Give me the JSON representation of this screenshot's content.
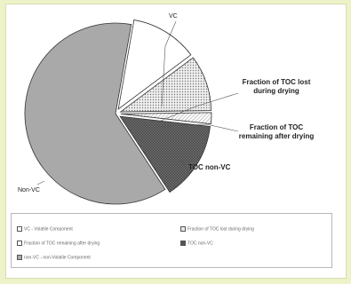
{
  "chart_data": {
    "type": "pie",
    "slices": [
      {
        "name": "VC",
        "value": 12,
        "color": "#ffffff",
        "pattern": "none",
        "exploded": true
      },
      {
        "name": "Fraction of TOC lost during drying",
        "value": 10,
        "color": "#e8e8e8",
        "pattern": "dots",
        "exploded": true
      },
      {
        "name": "Fraction of TOC remaining after drying",
        "value": 2,
        "color": "#ffffff",
        "pattern": "hatch",
        "exploded": true
      },
      {
        "name": "TOC non-VC",
        "value": 14,
        "color": "#8a8a8a",
        "pattern": "crosshatch",
        "exploded": true
      },
      {
        "name": "Non-VC",
        "value": 62,
        "color": "#a9a9a9",
        "pattern": "none",
        "exploded": false
      }
    ],
    "callouts": {
      "vc": "VC",
      "lost": "Fraction of TOC lost during drying",
      "remaining": "Fraction of TOC remaining after drying",
      "tocnonvc": "TOC non-VC",
      "nonvc": "Non-VC"
    },
    "legend": {
      "placement": "bottom",
      "items": [
        {
          "label": "VC - Volatile Component",
          "color": "#ffffff"
        },
        {
          "label": "Fraction of TOC lost during drying",
          "color": "#e8e8e8"
        },
        {
          "label": "Fraction of TOC remaining after drying",
          "color": "#ffffff"
        },
        {
          "label": "TOC non-VC",
          "color": "#555555"
        },
        {
          "label": "non-VC - non-Volatile Component",
          "color": "#a9a9a9"
        }
      ]
    }
  }
}
